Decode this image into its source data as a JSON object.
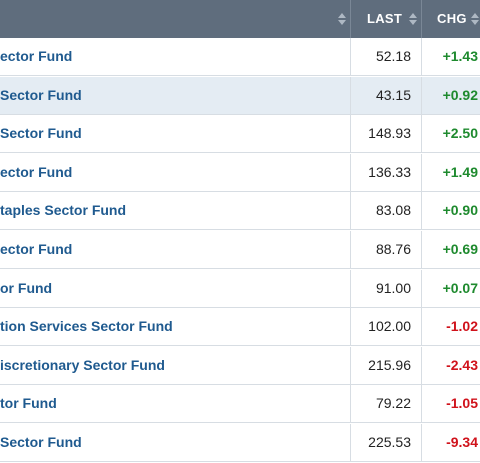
{
  "header": {
    "last_label": "LAST",
    "chg_label": "CHG"
  },
  "rows": [
    {
      "name": "ector Fund",
      "last": "52.18",
      "chg": "+1.43",
      "dir": "up",
      "highlight": false
    },
    {
      "name": "Sector Fund",
      "last": "43.15",
      "chg": "+0.92",
      "dir": "up",
      "highlight": true
    },
    {
      "name": "Sector Fund",
      "last": "148.93",
      "chg": "+2.50",
      "dir": "up",
      "highlight": false
    },
    {
      "name": "ector Fund",
      "last": "136.33",
      "chg": "+1.49",
      "dir": "up",
      "highlight": false
    },
    {
      "name": "taples Sector Fund",
      "last": "83.08",
      "chg": "+0.90",
      "dir": "up",
      "highlight": false
    },
    {
      "name": "ector Fund",
      "last": "88.76",
      "chg": "+0.69",
      "dir": "up",
      "highlight": false
    },
    {
      "name": "or Fund",
      "last": "91.00",
      "chg": "+0.07",
      "dir": "up",
      "highlight": false
    },
    {
      "name": "tion Services Sector Fund",
      "last": "102.00",
      "chg": "-1.02",
      "dir": "down",
      "highlight": false
    },
    {
      "name": "iscretionary Sector Fund",
      "last": "215.96",
      "chg": "-2.43",
      "dir": "down",
      "highlight": false
    },
    {
      "name": "tor Fund",
      "last": "79.22",
      "chg": "-1.05",
      "dir": "down",
      "highlight": false
    },
    {
      "name": "Sector Fund",
      "last": "225.53",
      "chg": "-9.34",
      "dir": "down",
      "highlight": false
    }
  ]
}
